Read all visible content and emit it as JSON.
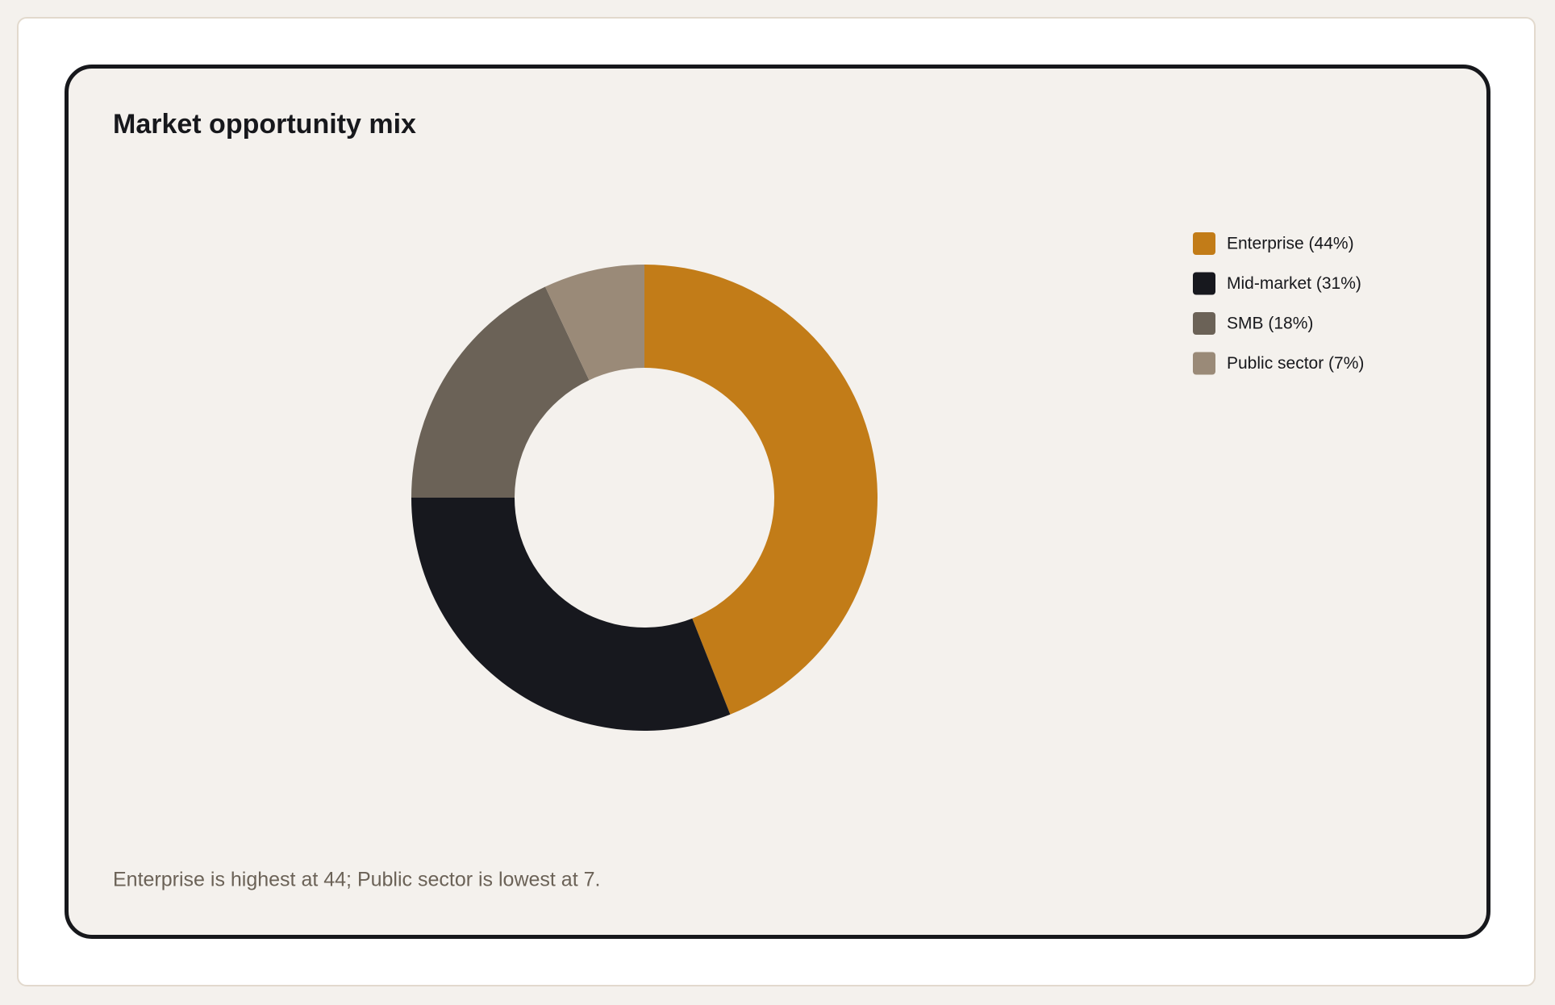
{
  "chart_data": {
    "type": "donut",
    "title": "Market opportunity mix",
    "categories": [
      "Enterprise",
      "Mid-market",
      "SMB",
      "Public sector"
    ],
    "values": [
      44,
      31,
      18,
      7
    ],
    "legend_labels": [
      "Enterprise (44%)",
      "Mid-market (31%)",
      "SMB (18%)",
      "Public sector (7%)"
    ],
    "colors": [
      "#c27c18",
      "#17181e",
      "#6b6257",
      "#9a8a78"
    ],
    "legend": "top-right",
    "annotation": "Enterprise is highest at 44; Public sector is lowest at 7."
  }
}
